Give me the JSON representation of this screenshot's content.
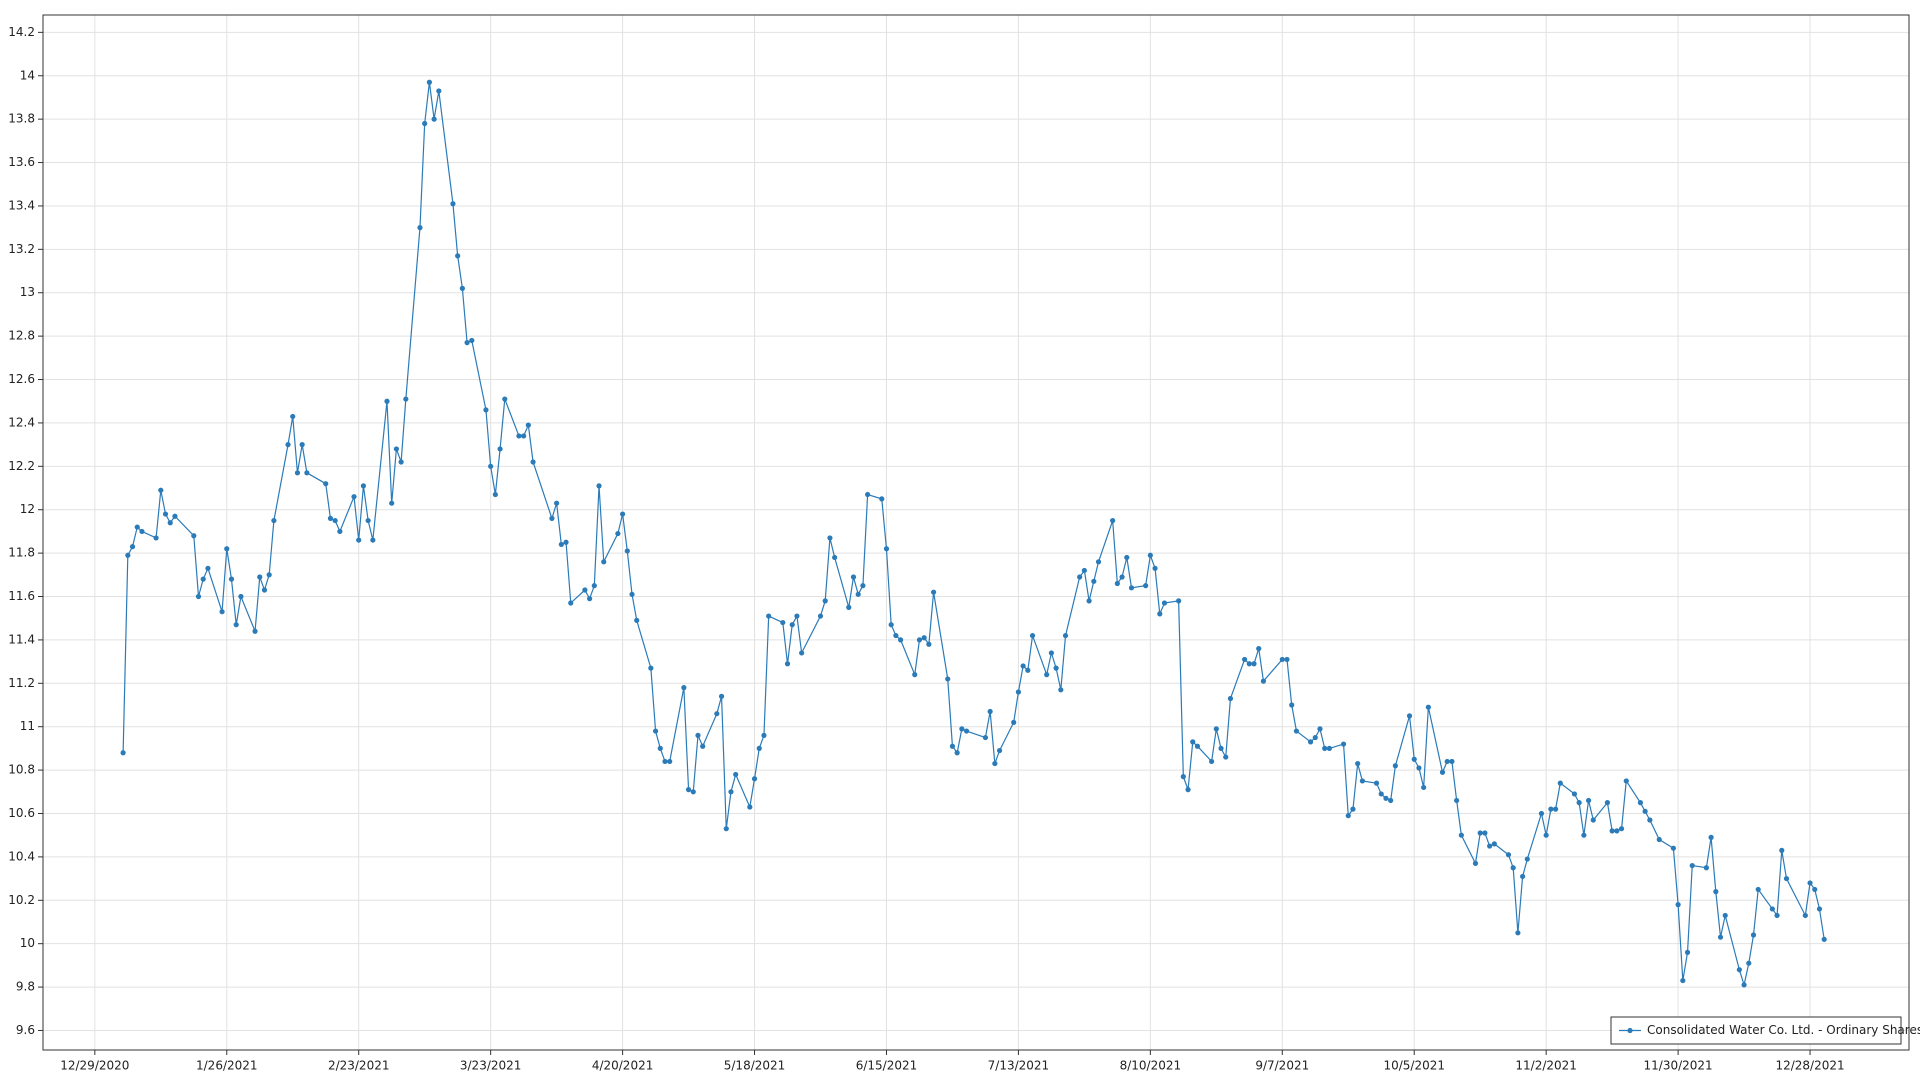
{
  "chart_data": {
    "type": "line",
    "x": [
      "2021-01-04",
      "2021-01-05",
      "2021-01-06",
      "2021-01-07",
      "2021-01-08",
      "2021-01-11",
      "2021-01-12",
      "2021-01-13",
      "2021-01-14",
      "2021-01-15",
      "2021-01-19",
      "2021-01-20",
      "2021-01-21",
      "2021-01-22",
      "2021-01-25",
      "2021-01-26",
      "2021-01-27",
      "2021-01-28",
      "2021-01-29",
      "2021-02-01",
      "2021-02-02",
      "2021-02-03",
      "2021-02-04",
      "2021-02-05",
      "2021-02-08",
      "2021-02-09",
      "2021-02-10",
      "2021-02-11",
      "2021-02-12",
      "2021-02-16",
      "2021-02-17",
      "2021-02-18",
      "2021-02-19",
      "2021-02-22",
      "2021-02-23",
      "2021-02-24",
      "2021-02-25",
      "2021-02-26",
      "2021-03-01",
      "2021-03-02",
      "2021-03-03",
      "2021-03-04",
      "2021-03-05",
      "2021-03-08",
      "2021-03-09",
      "2021-03-10",
      "2021-03-11",
      "2021-03-12",
      "2021-03-15",
      "2021-03-16",
      "2021-03-17",
      "2021-03-18",
      "2021-03-19",
      "2021-03-22",
      "2021-03-23",
      "2021-03-24",
      "2021-03-25",
      "2021-03-26",
      "2021-03-29",
      "2021-03-30",
      "2021-03-31",
      "2021-04-01",
      "2021-04-05",
      "2021-04-06",
      "2021-04-07",
      "2021-04-08",
      "2021-04-09",
      "2021-04-12",
      "2021-04-13",
      "2021-04-14",
      "2021-04-15",
      "2021-04-16",
      "2021-04-19",
      "2021-04-20",
      "2021-04-21",
      "2021-04-22",
      "2021-04-23",
      "2021-04-26",
      "2021-04-27",
      "2021-04-28",
      "2021-04-29",
      "2021-04-30",
      "2021-05-03",
      "2021-05-04",
      "2021-05-05",
      "2021-05-06",
      "2021-05-07",
      "2021-05-10",
      "2021-05-11",
      "2021-05-12",
      "2021-05-13",
      "2021-05-14",
      "2021-05-17",
      "2021-05-18",
      "2021-05-19",
      "2021-05-20",
      "2021-05-21",
      "2021-05-24",
      "2021-05-25",
      "2021-05-26",
      "2021-05-27",
      "2021-05-28",
      "2021-06-01",
      "2021-06-02",
      "2021-06-03",
      "2021-06-04",
      "2021-06-07",
      "2021-06-08",
      "2021-06-09",
      "2021-06-10",
      "2021-06-11",
      "2021-06-14",
      "2021-06-15",
      "2021-06-16",
      "2021-06-17",
      "2021-06-18",
      "2021-06-21",
      "2021-06-22",
      "2021-06-23",
      "2021-06-24",
      "2021-06-25",
      "2021-06-28",
      "2021-06-29",
      "2021-06-30",
      "2021-07-01",
      "2021-07-02",
      "2021-07-06",
      "2021-07-07",
      "2021-07-08",
      "2021-07-09",
      "2021-07-12",
      "2021-07-13",
      "2021-07-14",
      "2021-07-15",
      "2021-07-16",
      "2021-07-19",
      "2021-07-20",
      "2021-07-21",
      "2021-07-22",
      "2021-07-23",
      "2021-07-26",
      "2021-07-27",
      "2021-07-28",
      "2021-07-29",
      "2021-07-30",
      "2021-08-02",
      "2021-08-03",
      "2021-08-04",
      "2021-08-05",
      "2021-08-06",
      "2021-08-09",
      "2021-08-10",
      "2021-08-11",
      "2021-08-12",
      "2021-08-13",
      "2021-08-16",
      "2021-08-17",
      "2021-08-18",
      "2021-08-19",
      "2021-08-20",
      "2021-08-23",
      "2021-08-24",
      "2021-08-25",
      "2021-08-26",
      "2021-08-27",
      "2021-08-30",
      "2021-08-31",
      "2021-09-01",
      "2021-09-02",
      "2021-09-03",
      "2021-09-07",
      "2021-09-08",
      "2021-09-09",
      "2021-09-10",
      "2021-09-13",
      "2021-09-14",
      "2021-09-15",
      "2021-09-16",
      "2021-09-17",
      "2021-09-20",
      "2021-09-21",
      "2021-09-22",
      "2021-09-23",
      "2021-09-24",
      "2021-09-27",
      "2021-09-28",
      "2021-09-29",
      "2021-09-30",
      "2021-10-01",
      "2021-10-04",
      "2021-10-05",
      "2021-10-06",
      "2021-10-07",
      "2021-10-08",
      "2021-10-11",
      "2021-10-12",
      "2021-10-13",
      "2021-10-14",
      "2021-10-15",
      "2021-10-18",
      "2021-10-19",
      "2021-10-20",
      "2021-10-21",
      "2021-10-22",
      "2021-10-25",
      "2021-10-26",
      "2021-10-27",
      "2021-10-28",
      "2021-10-29",
      "2021-11-01",
      "2021-11-02",
      "2021-11-03",
      "2021-11-04",
      "2021-11-05",
      "2021-11-08",
      "2021-11-09",
      "2021-11-10",
      "2021-11-11",
      "2021-11-12",
      "2021-11-15",
      "2021-11-16",
      "2021-11-17",
      "2021-11-18",
      "2021-11-19",
      "2021-11-22",
      "2021-11-23",
      "2021-11-24",
      "2021-11-26",
      "2021-11-29",
      "2021-11-30",
      "2021-12-01",
      "2021-12-02",
      "2021-12-03",
      "2021-12-06",
      "2021-12-07",
      "2021-12-08",
      "2021-12-09",
      "2021-12-10",
      "2021-12-13",
      "2021-12-14",
      "2021-12-15",
      "2021-12-16",
      "2021-12-17",
      "2021-12-20",
      "2021-12-21",
      "2021-12-22",
      "2021-12-23",
      "2021-12-27",
      "2021-12-28",
      "2021-12-29",
      "2021-12-30",
      "2021-12-31"
    ],
    "series": [
      {
        "name": "Consolidated Water Co. Ltd. - Ordinary Shares",
        "color": "#2b7bb9",
        "values": [
          10.88,
          11.79,
          11.83,
          11.92,
          11.9,
          11.87,
          12.09,
          11.98,
          11.94,
          11.97,
          11.88,
          11.6,
          11.68,
          11.73,
          11.53,
          11.82,
          11.68,
          11.47,
          11.6,
          11.44,
          11.69,
          11.63,
          11.7,
          11.95,
          12.3,
          12.43,
          12.17,
          12.3,
          12.17,
          12.12,
          11.96,
          11.95,
          11.9,
          12.06,
          11.86,
          12.11,
          11.95,
          11.86,
          12.5,
          12.03,
          12.28,
          12.22,
          12.51,
          13.3,
          13.78,
          13.97,
          13.8,
          13.93,
          13.41,
          13.17,
          13.02,
          12.77,
          12.78,
          12.46,
          12.2,
          12.07,
          12.28,
          12.51,
          12.34,
          12.34,
          12.39,
          12.22,
          11.96,
          12.03,
          11.84,
          11.85,
          11.57,
          11.63,
          11.59,
          11.65,
          12.11,
          11.76,
          11.89,
          11.98,
          11.81,
          11.61,
          11.49,
          11.27,
          10.98,
          10.9,
          10.84,
          10.84,
          11.18,
          10.71,
          10.7,
          10.96,
          10.91,
          11.06,
          11.14,
          10.53,
          10.7,
          10.78,
          10.63,
          10.76,
          10.9,
          10.96,
          11.51,
          11.48,
          11.29,
          11.47,
          11.51,
          11.34,
          11.51,
          11.58,
          11.87,
          11.78,
          11.55,
          11.69,
          11.61,
          11.65,
          12.07,
          12.05,
          11.82,
          11.47,
          11.42,
          11.4,
          11.24,
          11.4,
          11.41,
          11.38,
          11.62,
          11.22,
          10.91,
          10.88,
          10.99,
          10.98,
          10.95,
          11.07,
          10.83,
          10.89,
          11.02,
          11.16,
          11.28,
          11.26,
          11.42,
          11.24,
          11.34,
          11.27,
          11.17,
          11.42,
          11.69,
          11.72,
          11.58,
          11.67,
          11.76,
          11.95,
          11.66,
          11.69,
          11.78,
          11.64,
          11.65,
          11.79,
          11.73,
          11.52,
          11.57,
          11.58,
          10.77,
          10.71,
          10.93,
          10.91,
          10.84,
          10.99,
          10.9,
          10.86,
          11.13,
          11.31,
          11.29,
          11.29,
          11.36,
          11.21,
          11.31,
          11.31,
          11.1,
          10.98,
          10.93,
          10.95,
          10.99,
          10.9,
          10.9,
          10.92,
          10.59,
          10.62,
          10.83,
          10.75,
          10.74,
          10.69,
          10.67,
          10.66,
          10.82,
          11.05,
          10.85,
          10.81,
          10.72,
          11.09,
          10.79,
          10.84,
          10.84,
          10.66,
          10.5,
          10.37,
          10.51,
          10.51,
          10.45,
          10.46,
          10.41,
          10.35,
          10.05,
          10.31,
          10.39,
          10.6,
          10.5,
          10.62,
          10.62,
          10.74,
          10.69,
          10.65,
          10.5,
          10.66,
          10.57,
          10.65,
          10.52,
          10.52,
          10.53,
          10.75,
          10.65,
          10.61,
          10.57,
          10.48,
          10.44,
          10.18,
          9.83,
          9.96,
          10.36,
          10.35,
          10.49,
          10.24,
          10.03,
          10.13,
          9.88,
          9.81,
          9.91,
          10.04,
          10.25,
          10.16,
          10.13,
          10.43,
          10.3,
          10.13,
          10.28,
          10.25,
          10.16,
          10.02
        ]
      }
    ],
    "xlim": [
      "2020-12-18",
      "2022-01-18"
    ],
    "xticks": [
      {
        "value": "2020-12-29",
        "label": "12/29/2020"
      },
      {
        "value": "2021-01-26",
        "label": "1/26/2021"
      },
      {
        "value": "2021-02-23",
        "label": "2/23/2021"
      },
      {
        "value": "2021-03-23",
        "label": "3/23/2021"
      },
      {
        "value": "2021-04-20",
        "label": "4/20/2021"
      },
      {
        "value": "2021-05-18",
        "label": "5/18/2021"
      },
      {
        "value": "2021-06-15",
        "label": "6/15/2021"
      },
      {
        "value": "2021-07-13",
        "label": "7/13/2021"
      },
      {
        "value": "2021-08-10",
        "label": "8/10/2021"
      },
      {
        "value": "2021-09-07",
        "label": "9/7/2021"
      },
      {
        "value": "2021-10-05",
        "label": "10/5/2021"
      },
      {
        "value": "2021-11-02",
        "label": "11/2/2021"
      },
      {
        "value": "2021-11-30",
        "label": "11/30/2021"
      },
      {
        "value": "2021-12-28",
        "label": "12/28/2021"
      }
    ],
    "ylim": [
      9.51,
      14.28
    ],
    "yticks": [
      9.6,
      9.8,
      10,
      10.2,
      10.4,
      10.6,
      10.8,
      11,
      11.2,
      11.4,
      11.6,
      11.8,
      12,
      12.2,
      12.4,
      12.6,
      12.8,
      13,
      13.2,
      13.4,
      13.6,
      13.8,
      14,
      14.2
    ],
    "grid": true,
    "legend": "lower right"
  }
}
